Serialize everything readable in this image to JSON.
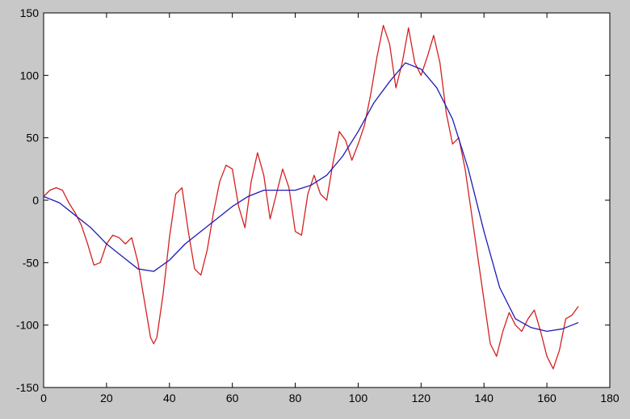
{
  "chart_data": {
    "type": "line",
    "title": "",
    "xlabel": "",
    "ylabel": "",
    "xlim": [
      0,
      180
    ],
    "ylim": [
      -150,
      150
    ],
    "xticks": [
      0,
      20,
      40,
      60,
      80,
      100,
      120,
      140,
      160,
      180
    ],
    "yticks": [
      -150,
      -100,
      -50,
      0,
      50,
      100,
      150
    ],
    "xtick_labels": [
      "0",
      "20",
      "40",
      "60",
      "80",
      "100",
      "120",
      "140",
      "160",
      "180"
    ],
    "ytick_labels": [
      "-150",
      "-100",
      "-50",
      "0",
      "50",
      "100",
      "150"
    ],
    "grid": false,
    "series": [
      {
        "color": "#d42020",
        "x": [
          0,
          2,
          4,
          6,
          8,
          10,
          12,
          14,
          16,
          18,
          20,
          22,
          24,
          26,
          28,
          30,
          32,
          34,
          35,
          36,
          38,
          40,
          42,
          44,
          46,
          48,
          50,
          52,
          54,
          56,
          58,
          60,
          62,
          64,
          66,
          68,
          70,
          72,
          74,
          76,
          78,
          80,
          82,
          84,
          86,
          88,
          90,
          92,
          94,
          96,
          98,
          100,
          102,
          104,
          106,
          108,
          110,
          112,
          114,
          116,
          118,
          120,
          122,
          124,
          126,
          128,
          130,
          132,
          134,
          136,
          138,
          140,
          142,
          144,
          146,
          148,
          150,
          152,
          154,
          156,
          158,
          160,
          162,
          164,
          166,
          168,
          170
        ],
        "y": [
          3,
          8,
          10,
          8,
          -2,
          -10,
          -20,
          -35,
          -52,
          -50,
          -35,
          -28,
          -30,
          -35,
          -30,
          -50,
          -80,
          -110,
          -115,
          -110,
          -75,
          -30,
          5,
          10,
          -25,
          -55,
          -60,
          -40,
          -10,
          15,
          28,
          25,
          -5,
          -22,
          15,
          38,
          20,
          -15,
          5,
          25,
          10,
          -25,
          -28,
          5,
          20,
          5,
          0,
          30,
          55,
          48,
          32,
          45,
          60,
          85,
          115,
          140,
          125,
          90,
          110,
          138,
          110,
          100,
          115,
          132,
          110,
          70,
          45,
          50,
          25,
          -10,
          -45,
          -80,
          -115,
          -125,
          -105,
          -90,
          -100,
          -105,
          -95,
          -88,
          -105,
          -125,
          -135,
          -120,
          -95,
          -92,
          -85
        ]
      },
      {
        "color": "#1c1cb8",
        "x": [
          0,
          5,
          10,
          15,
          20,
          25,
          30,
          35,
          40,
          45,
          50,
          55,
          60,
          65,
          70,
          75,
          80,
          85,
          90,
          95,
          100,
          105,
          110,
          115,
          120,
          125,
          130,
          135,
          140,
          145,
          150,
          155,
          160,
          165,
          170
        ],
        "y": [
          3,
          -2,
          -12,
          -22,
          -35,
          -45,
          -55,
          -57,
          -48,
          -35,
          -25,
          -15,
          -5,
          3,
          8,
          8,
          8,
          12,
          20,
          35,
          55,
          78,
          95,
          110,
          105,
          90,
          65,
          25,
          -25,
          -70,
          -95,
          -102,
          -105,
          -103,
          -98
        ]
      }
    ]
  }
}
